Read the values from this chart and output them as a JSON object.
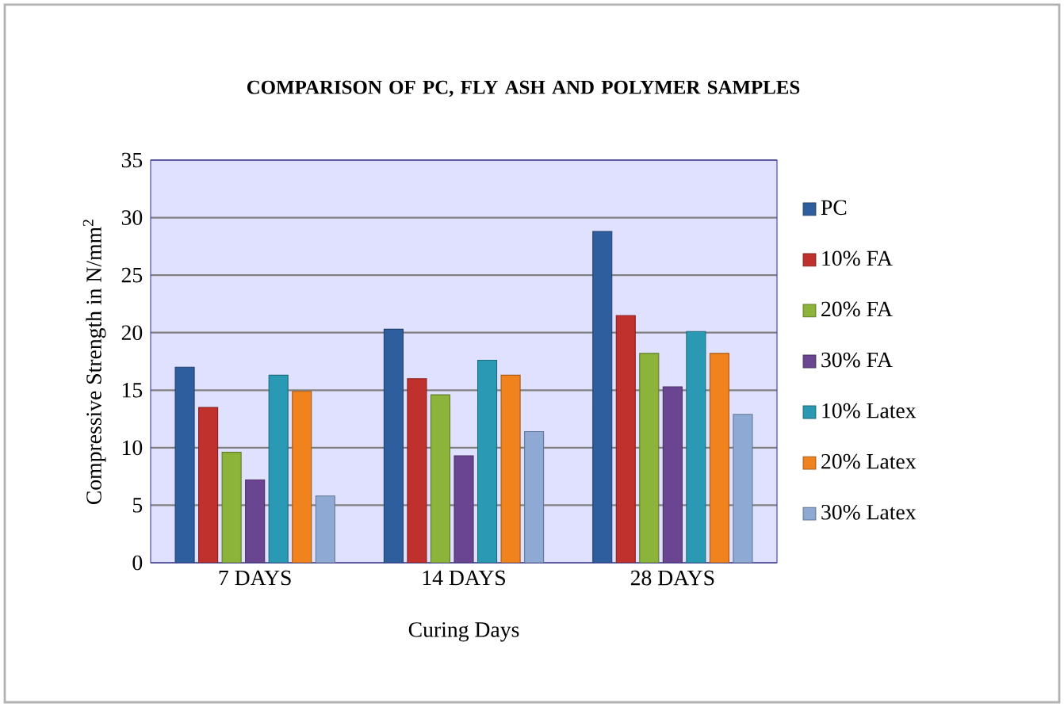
{
  "chart_data": {
    "type": "bar",
    "title": "COMPARISON OF PC, FLY ASH AND POLYMER SAMPLES",
    "xlabel": "Curing Days",
    "ylabel": "Compressive Strength in N/mm$^{2}$",
    "categories": [
      "7 DAYS",
      "14 DAYS",
      "28 DAYS"
    ],
    "series": [
      {
        "name": "PC",
        "color": "#2e5e9e",
        "values": [
          17.0,
          20.3,
          28.8
        ]
      },
      {
        "name": "10% FA",
        "color": "#c0302c",
        "values": [
          13.5,
          16.0,
          21.5
        ]
      },
      {
        "name": "20% FA",
        "color": "#8cb43a",
        "values": [
          9.6,
          14.6,
          18.2
        ]
      },
      {
        "name": "30% FA",
        "color": "#6a4692",
        "values": [
          7.2,
          9.3,
          15.3
        ]
      },
      {
        "name": "10% Latex",
        "color": "#2a9ab4",
        "values": [
          16.3,
          17.6,
          20.1
        ]
      },
      {
        "name": "20% Latex",
        "color": "#f0831e",
        "values": [
          14.9,
          16.3,
          18.2
        ]
      },
      {
        "name": "30% Latex",
        "color": "#8eaad4",
        "values": [
          5.8,
          11.4,
          12.9
        ]
      }
    ],
    "ylim": [
      0,
      35
    ],
    "yticks": [
      0,
      5,
      10,
      15,
      20,
      25,
      30,
      35
    ],
    "grid": "y",
    "legend": "right"
  }
}
